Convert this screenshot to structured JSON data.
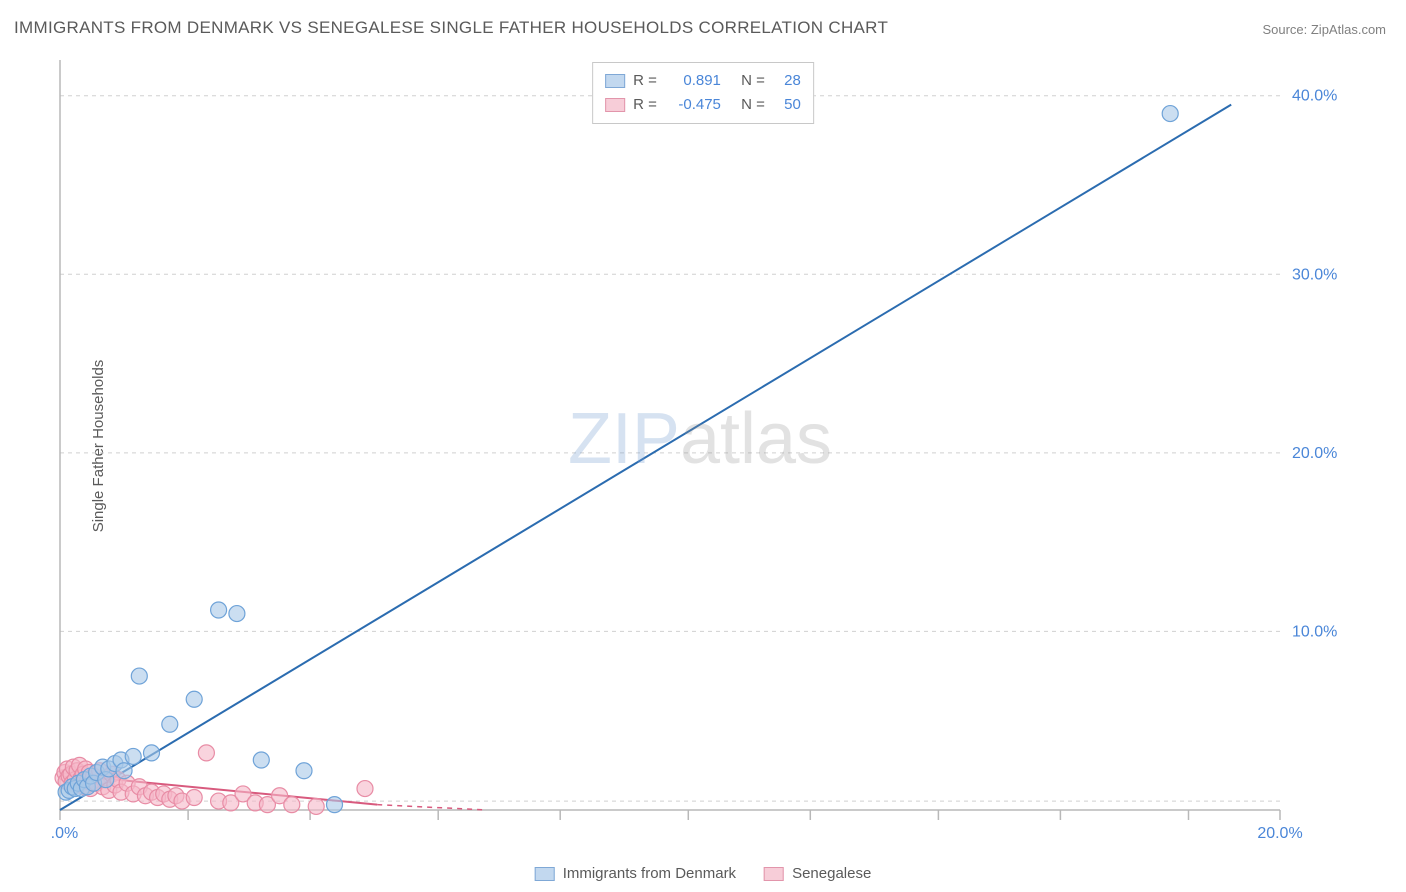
{
  "title": "IMMIGRANTS FROM DENMARK VS SENEGALESE SINGLE FATHER HOUSEHOLDS CORRELATION CHART",
  "source": "Source: ZipAtlas.com",
  "y_axis_label": "Single Father Households",
  "watermark_a": "ZIP",
  "watermark_b": "atlas",
  "chart": {
    "type": "scatter",
    "xlim": [
      0,
      20
    ],
    "ylim": [
      0,
      42
    ],
    "x_ticks": [
      0,
      20
    ],
    "x_tick_labels": [
      "0.0%",
      "20.0%"
    ],
    "x_minor_ticks": [
      2.1,
      4.1,
      6.2,
      8.2,
      10.3,
      12.3,
      14.4,
      16.4,
      18.5
    ],
    "y_ticks": [
      10,
      20,
      30,
      40
    ],
    "y_tick_labels": [
      "10.0%",
      "20.0%",
      "30.0%",
      "40.0%"
    ],
    "y_grid": [
      0.5,
      10,
      20,
      30,
      40
    ],
    "background_color": "#ffffff",
    "grid_color": "#d0d0d0",
    "axis_color": "#b8b8b8",
    "marker_radius": 8
  },
  "series": {
    "blue": {
      "name": "Immigrants from Denmark",
      "color_fill": "#a8c8e8",
      "color_stroke": "#6fa3d8",
      "trend_color": "#2b6cb0",
      "R": "0.891",
      "N": "28",
      "trend": {
        "solid_from": [
          0,
          0
        ],
        "solid_to": [
          19.2,
          39.5
        ],
        "dash_to": [
          20,
          41.2
        ]
      },
      "points": [
        [
          0.1,
          1.0
        ],
        [
          0.15,
          1.1
        ],
        [
          0.2,
          1.3
        ],
        [
          0.25,
          1.2
        ],
        [
          0.3,
          1.5
        ],
        [
          0.35,
          1.2
        ],
        [
          0.4,
          1.7
        ],
        [
          0.45,
          1.3
        ],
        [
          0.5,
          1.9
        ],
        [
          0.55,
          1.5
        ],
        [
          0.6,
          2.1
        ],
        [
          0.7,
          2.4
        ],
        [
          0.75,
          1.7
        ],
        [
          0.8,
          2.3
        ],
        [
          0.9,
          2.6
        ],
        [
          1.0,
          2.8
        ],
        [
          1.05,
          2.2
        ],
        [
          1.2,
          3.0
        ],
        [
          1.3,
          7.5
        ],
        [
          1.5,
          3.2
        ],
        [
          1.8,
          4.8
        ],
        [
          2.2,
          6.2
        ],
        [
          2.6,
          11.2
        ],
        [
          2.9,
          11.0
        ],
        [
          3.3,
          2.8
        ],
        [
          4.0,
          2.2
        ],
        [
          4.5,
          0.3
        ],
        [
          18.2,
          39.0
        ]
      ]
    },
    "pink": {
      "name": "Senegalese",
      "color_fill": "#f5b8c8",
      "color_stroke": "#e88ca5",
      "trend_color": "#d85a7e",
      "R": "-0.475",
      "N": "50",
      "trend": {
        "solid_from": [
          0,
          2.0
        ],
        "solid_to": [
          5.2,
          0.3
        ],
        "dash_from": [
          5.2,
          0.3
        ],
        "dash_to": [
          7.0,
          -0.3
        ]
      },
      "points": [
        [
          0.05,
          1.8
        ],
        [
          0.08,
          2.1
        ],
        [
          0.1,
          1.6
        ],
        [
          0.12,
          2.3
        ],
        [
          0.15,
          1.9
        ],
        [
          0.18,
          2.0
        ],
        [
          0.2,
          1.5
        ],
        [
          0.22,
          2.4
        ],
        [
          0.25,
          1.7
        ],
        [
          0.28,
          2.2
        ],
        [
          0.3,
          1.4
        ],
        [
          0.32,
          2.5
        ],
        [
          0.35,
          1.8
        ],
        [
          0.38,
          2.0
        ],
        [
          0.4,
          1.3
        ],
        [
          0.42,
          2.3
        ],
        [
          0.45,
          1.6
        ],
        [
          0.48,
          2.1
        ],
        [
          0.5,
          1.2
        ],
        [
          0.55,
          1.9
        ],
        [
          0.6,
          1.5
        ],
        [
          0.65,
          2.2
        ],
        [
          0.7,
          1.3
        ],
        [
          0.75,
          1.8
        ],
        [
          0.8,
          1.1
        ],
        [
          0.85,
          2.0
        ],
        [
          0.9,
          1.4
        ],
        [
          0.95,
          1.7
        ],
        [
          1.0,
          1.0
        ],
        [
          1.1,
          1.5
        ],
        [
          1.2,
          0.9
        ],
        [
          1.3,
          1.3
        ],
        [
          1.4,
          0.8
        ],
        [
          1.5,
          1.0
        ],
        [
          1.6,
          0.7
        ],
        [
          1.7,
          0.9
        ],
        [
          1.8,
          0.6
        ],
        [
          1.9,
          0.8
        ],
        [
          2.0,
          0.5
        ],
        [
          2.2,
          0.7
        ],
        [
          2.4,
          3.2
        ],
        [
          2.6,
          0.5
        ],
        [
          2.8,
          0.4
        ],
        [
          3.0,
          0.9
        ],
        [
          3.2,
          0.4
        ],
        [
          3.4,
          0.3
        ],
        [
          3.6,
          0.8
        ],
        [
          3.8,
          0.3
        ],
        [
          4.2,
          0.2
        ],
        [
          5.0,
          1.2
        ]
      ]
    }
  },
  "stats_legend": {
    "r_label": "R =",
    "n_label": "N ="
  }
}
